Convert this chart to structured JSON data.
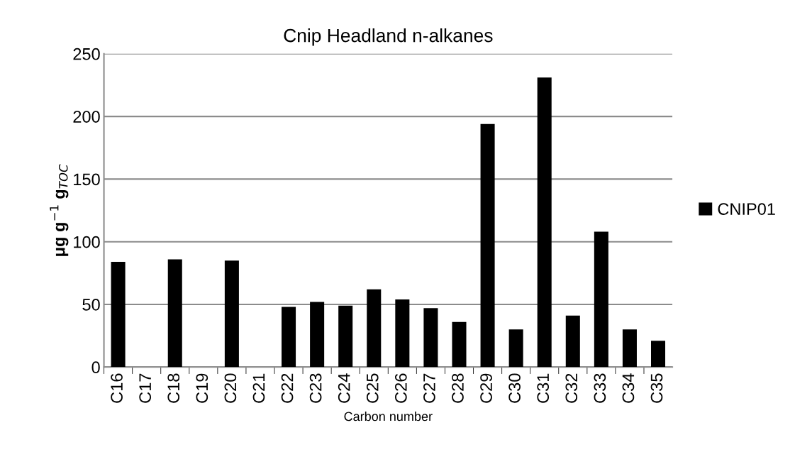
{
  "chart_data": {
    "type": "bar",
    "title": "Cnip Headland n-alkanes",
    "xlabel": "Carbon number",
    "ylabel": "μg g$^{−1}$ g$_{TOC}$",
    "categories": [
      "C16",
      "C17",
      "C18",
      "C19",
      "C20",
      "C21",
      "C22",
      "C23",
      "C24",
      "C25",
      "C26",
      "C27",
      "C28",
      "C29",
      "C30",
      "C31",
      "C32",
      "C33",
      "C34",
      "C35"
    ],
    "series": [
      {
        "name": "CNIP01",
        "color": "#000000",
        "values": [
          84,
          0,
          86,
          0,
          85,
          0,
          48,
          52,
          49,
          62,
          54,
          47,
          36,
          194,
          30,
          231,
          41,
          108,
          30,
          21
        ]
      }
    ],
    "ylim": [
      0,
      250
    ],
    "yticks": [
      0,
      50,
      100,
      150,
      200,
      250
    ],
    "grid": "y",
    "legend": "right"
  }
}
